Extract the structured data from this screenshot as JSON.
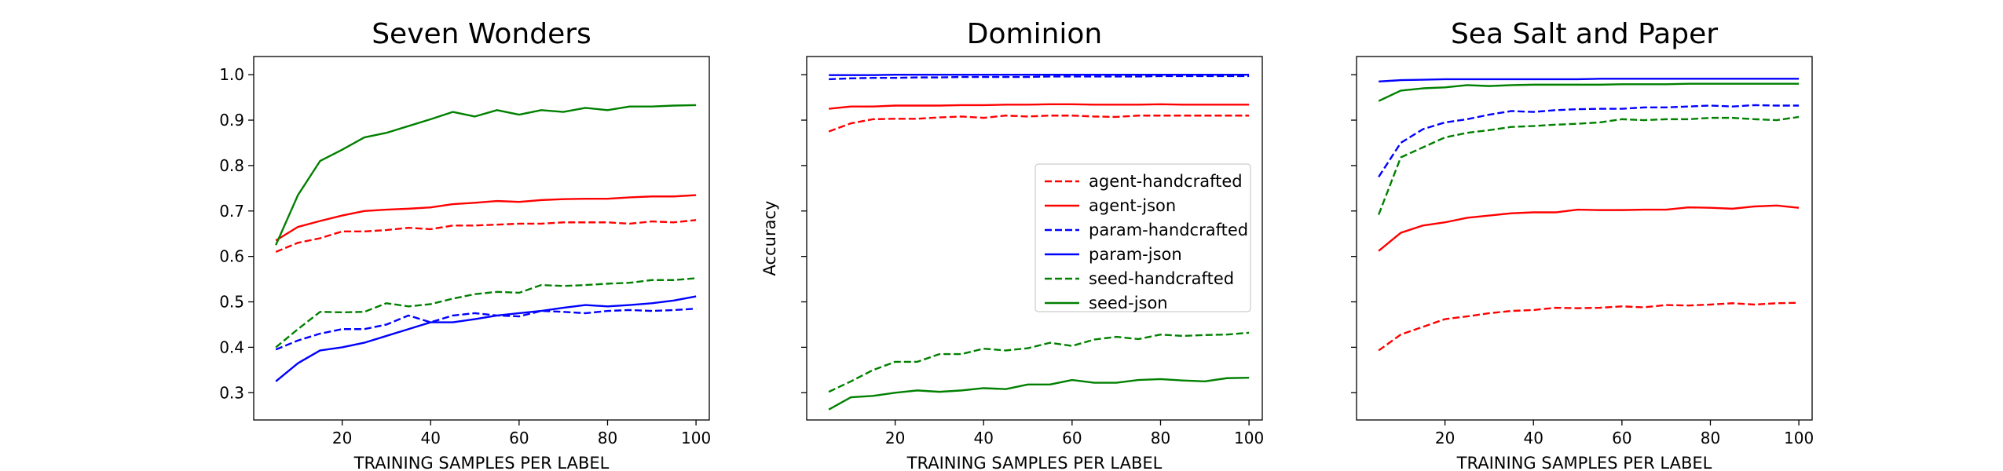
{
  "chart_data": [
    {
      "type": "line",
      "title": "Seven Wonders",
      "xlabel": "TRAINING SAMPLES PER LABEL",
      "ylabel": "",
      "xlim": [
        0,
        103
      ],
      "ylim": [
        0.24,
        1.04
      ],
      "xticks": [
        20,
        40,
        60,
        80,
        100
      ],
      "yticks": [
        0.3,
        0.4,
        0.5,
        0.6,
        0.7,
        0.8,
        0.9,
        1.0
      ],
      "show_yticklabels": true,
      "grid": false,
      "x": [
        5,
        10,
        15,
        20,
        25,
        30,
        35,
        40,
        45,
        50,
        55,
        60,
        65,
        70,
        75,
        80,
        85,
        90,
        95,
        100
      ],
      "series": [
        {
          "name": "agent-handcrafted",
          "color": "#ff0000",
          "dash": "dashed",
          "values": [
            0.61,
            0.63,
            0.64,
            0.655,
            0.655,
            0.658,
            0.663,
            0.66,
            0.668,
            0.668,
            0.67,
            0.672,
            0.672,
            0.675,
            0.675,
            0.675,
            0.672,
            0.677,
            0.675,
            0.68
          ]
        },
        {
          "name": "agent-json",
          "color": "#ff0000",
          "dash": "solid",
          "values": [
            0.635,
            0.665,
            0.678,
            0.69,
            0.7,
            0.703,
            0.705,
            0.708,
            0.715,
            0.718,
            0.722,
            0.72,
            0.724,
            0.726,
            0.727,
            0.727,
            0.73,
            0.732,
            0.732,
            0.735
          ]
        },
        {
          "name": "param-handcrafted",
          "color": "#0000ff",
          "dash": "dashed",
          "values": [
            0.395,
            0.415,
            0.43,
            0.44,
            0.44,
            0.45,
            0.47,
            0.455,
            0.47,
            0.475,
            0.47,
            0.468,
            0.48,
            0.478,
            0.475,
            0.48,
            0.482,
            0.48,
            0.482,
            0.485
          ]
        },
        {
          "name": "param-json",
          "color": "#0000ff",
          "dash": "solid",
          "values": [
            0.325,
            0.365,
            0.393,
            0.4,
            0.41,
            0.425,
            0.44,
            0.455,
            0.455,
            0.462,
            0.47,
            0.475,
            0.48,
            0.487,
            0.493,
            0.49,
            0.493,
            0.497,
            0.503,
            0.512
          ]
        },
        {
          "name": "seed-handcrafted",
          "color": "#008000",
          "dash": "dashed",
          "values": [
            0.4,
            0.44,
            0.478,
            0.477,
            0.478,
            0.497,
            0.49,
            0.495,
            0.507,
            0.517,
            0.522,
            0.52,
            0.537,
            0.535,
            0.537,
            0.54,
            0.542,
            0.548,
            0.548,
            0.552
          ]
        },
        {
          "name": "seed-json",
          "color": "#008000",
          "dash": "solid",
          "values": [
            0.625,
            0.735,
            0.81,
            0.835,
            0.862,
            0.872,
            0.887,
            0.902,
            0.918,
            0.908,
            0.922,
            0.912,
            0.922,
            0.918,
            0.927,
            0.922,
            0.93,
            0.93,
            0.932,
            0.933
          ]
        }
      ]
    },
    {
      "type": "line",
      "title": "Dominion",
      "xlabel": "TRAINING SAMPLES PER LABEL",
      "ylabel": "Accuracy",
      "xlim": [
        0,
        103
      ],
      "ylim": [
        0.24,
        1.04
      ],
      "xticks": [
        20,
        40,
        60,
        80,
        100
      ],
      "yticks": [
        0.3,
        0.4,
        0.5,
        0.6,
        0.7,
        0.8,
        0.9,
        1.0
      ],
      "show_yticklabels": false,
      "grid": false,
      "legend": "center-right",
      "x": [
        5,
        10,
        15,
        20,
        25,
        30,
        35,
        40,
        45,
        50,
        55,
        60,
        65,
        70,
        75,
        80,
        85,
        90,
        95,
        100
      ],
      "series": [
        {
          "name": "agent-handcrafted",
          "color": "#ff0000",
          "dash": "dashed",
          "values": [
            0.875,
            0.893,
            0.902,
            0.903,
            0.903,
            0.906,
            0.908,
            0.905,
            0.91,
            0.908,
            0.91,
            0.91,
            0.908,
            0.907,
            0.91,
            0.91,
            0.91,
            0.91,
            0.91,
            0.91
          ]
        },
        {
          "name": "agent-json",
          "color": "#ff0000",
          "dash": "solid",
          "values": [
            0.925,
            0.93,
            0.93,
            0.932,
            0.932,
            0.932,
            0.933,
            0.933,
            0.934,
            0.934,
            0.935,
            0.935,
            0.934,
            0.934,
            0.934,
            0.935,
            0.934,
            0.934,
            0.934,
            0.934
          ]
        },
        {
          "name": "param-handcrafted",
          "color": "#0000ff",
          "dash": "dashed",
          "values": [
            0.99,
            0.992,
            0.993,
            0.993,
            0.994,
            0.994,
            0.995,
            0.995,
            0.995,
            0.995,
            0.996,
            0.996,
            0.996,
            0.996,
            0.996,
            0.997,
            0.997,
            0.997,
            0.997,
            0.997
          ]
        },
        {
          "name": "param-json",
          "color": "#0000ff",
          "dash": "solid",
          "values": [
            0.999,
            0.999,
            0.999,
            1.0,
            1.0,
            1.0,
            1.0,
            1.0,
            1.0,
            1.0,
            1.0,
            1.0,
            1.0,
            1.0,
            1.0,
            1.0,
            1.0,
            1.0,
            1.0,
            1.0
          ]
        },
        {
          "name": "seed-handcrafted",
          "color": "#008000",
          "dash": "dashed",
          "values": [
            0.302,
            0.325,
            0.35,
            0.368,
            0.368,
            0.385,
            0.385,
            0.397,
            0.393,
            0.398,
            0.41,
            0.403,
            0.417,
            0.423,
            0.418,
            0.428,
            0.425,
            0.427,
            0.428,
            0.432
          ]
        },
        {
          "name": "seed-json",
          "color": "#008000",
          "dash": "solid",
          "values": [
            0.263,
            0.29,
            0.293,
            0.3,
            0.305,
            0.302,
            0.305,
            0.31,
            0.308,
            0.318,
            0.318,
            0.328,
            0.322,
            0.322,
            0.328,
            0.33,
            0.327,
            0.325,
            0.332,
            0.333
          ]
        }
      ]
    },
    {
      "type": "line",
      "title": "Sea Salt and Paper",
      "xlabel": "TRAINING SAMPLES PER LABEL",
      "ylabel": "",
      "xlim": [
        0,
        103
      ],
      "ylim": [
        0.24,
        1.04
      ],
      "xticks": [
        20,
        40,
        60,
        80,
        100
      ],
      "yticks": [
        0.3,
        0.4,
        0.5,
        0.6,
        0.7,
        0.8,
        0.9,
        1.0
      ],
      "show_yticklabels": false,
      "grid": false,
      "x": [
        5,
        10,
        15,
        20,
        25,
        30,
        35,
        40,
        45,
        50,
        55,
        60,
        65,
        70,
        75,
        80,
        85,
        90,
        95,
        100
      ],
      "series": [
        {
          "name": "agent-handcrafted",
          "color": "#ff0000",
          "dash": "dashed",
          "values": [
            0.393,
            0.428,
            0.445,
            0.462,
            0.468,
            0.475,
            0.48,
            0.482,
            0.487,
            0.486,
            0.487,
            0.49,
            0.488,
            0.493,
            0.492,
            0.494,
            0.497,
            0.494,
            0.497,
            0.498
          ]
        },
        {
          "name": "agent-json",
          "color": "#ff0000",
          "dash": "solid",
          "values": [
            0.612,
            0.652,
            0.668,
            0.675,
            0.685,
            0.69,
            0.695,
            0.697,
            0.697,
            0.703,
            0.702,
            0.702,
            0.703,
            0.703,
            0.708,
            0.707,
            0.705,
            0.71,
            0.712,
            0.707
          ]
        },
        {
          "name": "param-handcrafted",
          "color": "#0000ff",
          "dash": "dashed",
          "values": [
            0.775,
            0.85,
            0.88,
            0.895,
            0.902,
            0.912,
            0.92,
            0.918,
            0.922,
            0.924,
            0.925,
            0.925,
            0.928,
            0.928,
            0.93,
            0.932,
            0.93,
            0.933,
            0.932,
            0.932
          ]
        },
        {
          "name": "param-json",
          "color": "#0000ff",
          "dash": "solid",
          "values": [
            0.985,
            0.988,
            0.989,
            0.99,
            0.99,
            0.99,
            0.99,
            0.99,
            0.99,
            0.99,
            0.991,
            0.991,
            0.991,
            0.991,
            0.991,
            0.991,
            0.991,
            0.991,
            0.991,
            0.991
          ]
        },
        {
          "name": "seed-handcrafted",
          "color": "#008000",
          "dash": "dashed",
          "values": [
            0.692,
            0.818,
            0.84,
            0.862,
            0.872,
            0.878,
            0.885,
            0.887,
            0.89,
            0.892,
            0.895,
            0.902,
            0.9,
            0.902,
            0.902,
            0.905,
            0.905,
            0.902,
            0.9,
            0.907
          ]
        },
        {
          "name": "seed-json",
          "color": "#008000",
          "dash": "solid",
          "values": [
            0.942,
            0.965,
            0.97,
            0.972,
            0.977,
            0.975,
            0.977,
            0.978,
            0.978,
            0.978,
            0.978,
            0.979,
            0.979,
            0.979,
            0.98,
            0.98,
            0.98,
            0.98,
            0.98,
            0.98
          ]
        }
      ]
    }
  ]
}
